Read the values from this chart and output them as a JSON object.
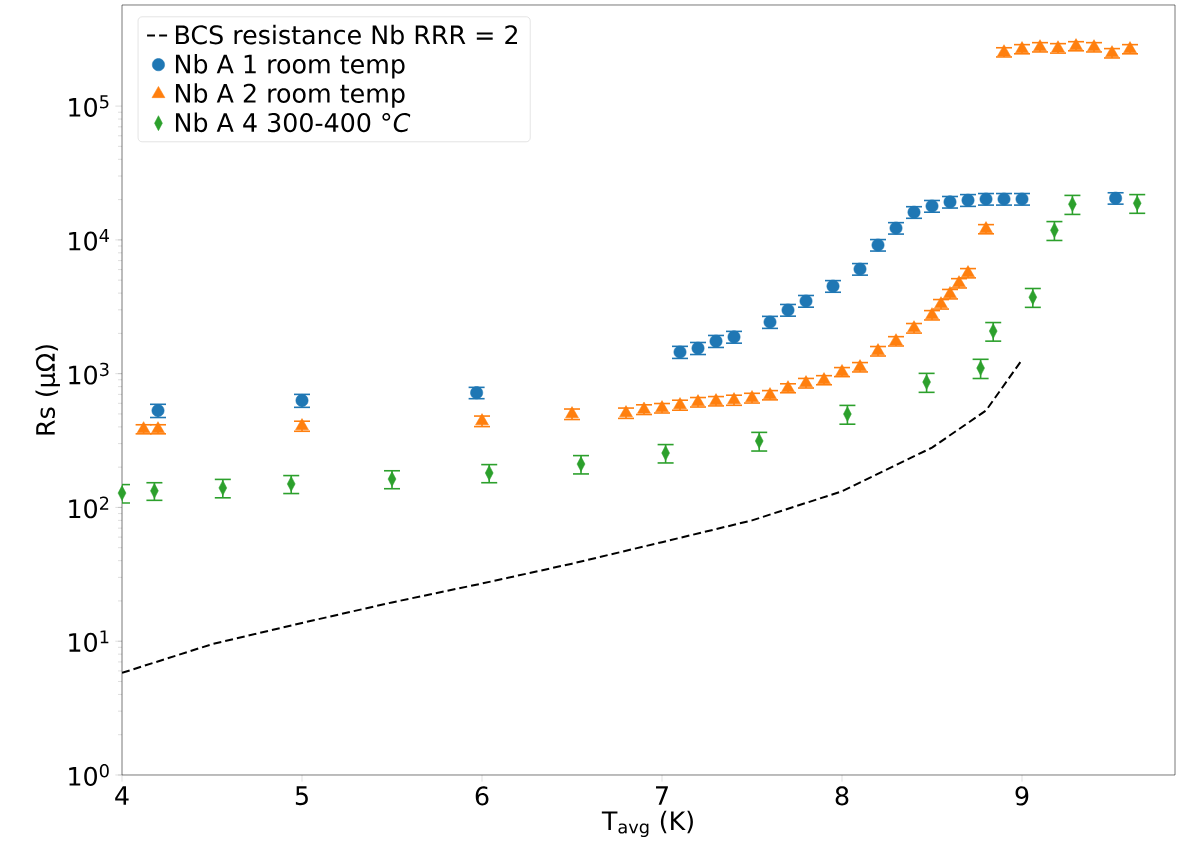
{
  "chart_data": {
    "type": "scatter",
    "xlabel": "T$_{avg}$ (K)",
    "ylabel": "Rs (μΩ)",
    "log": "y",
    "legend": "top left",
    "xlim": [
      4,
      9.85
    ],
    "xticks": [
      4,
      5,
      6,
      7,
      8,
      9
    ],
    "ylim": [
      1,
      570000
    ],
    "yticks": [
      {
        "value": 1,
        "label": "10$^{0}$"
      },
      {
        "value": 10,
        "label": "10$^{1}$"
      },
      {
        "value": 100,
        "label": "10$^{2}$"
      },
      {
        "value": 1000,
        "label": "10$^{3}$"
      },
      {
        "value": 10000,
        "label": "10$^{4}$"
      },
      {
        "value": 100000,
        "label": "10$^{5}$"
      }
    ],
    "series": [
      {
        "name": "BCS resistance Nb RRR = 2",
        "type": "line",
        "color": "#000000",
        "line_style": "dashed",
        "marker": "none",
        "x": [
          4,
          4.5,
          5,
          5.5,
          6,
          6.5,
          7,
          7.5,
          8,
          8.5,
          8.8,
          9
        ],
        "values": [
          5.8,
          9.5,
          13.7,
          19.5,
          27,
          38,
          55,
          80,
          132,
          280,
          530,
          1270
        ]
      },
      {
        "name": "Nb A 1 room temp",
        "color": "#1f77b4",
        "marker": "circle",
        "x": [
          4.2,
          5.0,
          5.97,
          7.1,
          7.2,
          7.3,
          7.4,
          7.6,
          7.7,
          7.8,
          7.95,
          8.1,
          8.2,
          8.3,
          8.4,
          8.5,
          8.6,
          8.7,
          8.8,
          8.9,
          9.0,
          9.52
        ],
        "values": [
          530,
          630,
          720,
          1450,
          1550,
          1750,
          1880,
          2430,
          2990,
          3490,
          4510,
          6050,
          9150,
          12250,
          16100,
          17900,
          19200,
          19800,
          20200,
          20200,
          20200,
          20500
        ],
        "errors": [
          60,
          70,
          70,
          150,
          160,
          180,
          190,
          250,
          300,
          350,
          450,
          600,
          900,
          1200,
          1600,
          1800,
          1900,
          2000,
          2000,
          2000,
          2000,
          2000
        ]
      },
      {
        "name": "Nb A 2 room temp",
        "color": "#ff7f0e",
        "marker": "triangle",
        "x": [
          4.12,
          4.2,
          5.0,
          6.0,
          6.5,
          6.8,
          6.9,
          7.0,
          7.1,
          7.2,
          7.3,
          7.4,
          7.5,
          7.6,
          7.7,
          7.8,
          7.9,
          8.0,
          8.1,
          8.2,
          8.3,
          8.4,
          8.5,
          8.55,
          8.6,
          8.65,
          8.7,
          8.8,
          8.9,
          9.0,
          9.1,
          9.2,
          9.3,
          9.4,
          9.5,
          9.6
        ],
        "values": [
          385,
          385,
          406,
          442,
          499,
          508,
          540,
          553,
          583,
          613,
          624,
          635,
          658,
          692,
          780,
          851,
          896,
          1030,
          1120,
          1475,
          1750,
          2190,
          2740,
          3310,
          3940,
          4750,
          5650,
          12050,
          253000,
          267000,
          276000,
          271000,
          281000,
          276000,
          249000,
          267000
        ],
        "errors": [
          30,
          30,
          35,
          40,
          45,
          45,
          45,
          45,
          50,
          50,
          50,
          55,
          55,
          55,
          60,
          70,
          70,
          80,
          90,
          120,
          140,
          180,
          220,
          270,
          320,
          380,
          450,
          950,
          20000,
          21000,
          22000,
          22000,
          22000,
          22000,
          20000,
          21000
        ]
      },
      {
        "name": "Nb A 4 300-400 °*C*",
        "color": "#2ca02c",
        "marker": "diamond",
        "x": [
          4.0,
          4.18,
          4.56,
          4.94,
          5.5,
          6.04,
          6.55,
          7.02,
          7.54,
          8.03,
          8.47,
          8.77,
          8.84,
          9.06,
          9.18,
          9.28,
          9.64
        ],
        "values": [
          128,
          133,
          140,
          150,
          163,
          181,
          211,
          255,
          314,
          499,
          865,
          1100,
          2080,
          3730,
          11800,
          18500,
          18800
        ],
        "errors": [
          20,
          20,
          22,
          23,
          25,
          28,
          33,
          40,
          50,
          80,
          140,
          180,
          330,
          600,
          1900,
          3000,
          3000
        ]
      }
    ]
  }
}
